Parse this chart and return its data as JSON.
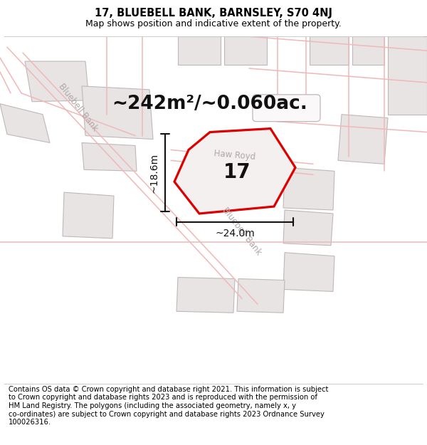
{
  "title_line1": "17, BLUEBELL BANK, BARNSLEY, S70 4NJ",
  "title_line2": "Map shows position and indicative extent of the property.",
  "footer_lines": [
    "Contains OS data © Crown copyright and database right 2021. This information is subject",
    "to Crown copyright and database rights 2023 and is reproduced with the permission of",
    "HM Land Registry. The polygons (including the associated geometry, namely x, y",
    "co-ordinates) are subject to Crown copyright and database rights 2023 Ordnance Survey",
    "100026316."
  ],
  "area_label": "~242m²/~0.060ac.",
  "number_label": "17",
  "dim_width": "~24.0m",
  "dim_height": "~18.6m",
  "road_label_bluebell_left": "Bluebell Bank",
  "road_label_haw": "Haw Royd",
  "road_label_bluebell_bottom": "Bluebell Bank",
  "map_bg": "#faf8f8",
  "road_line_color": "#f0b8b8",
  "building_fill": "#e8e4e4",
  "building_edge": "#c0b8b8",
  "road_label_color": "#b0a8a8",
  "plot_fill": "#f5f0f0",
  "plot_edge_color": "#dd0000",
  "dim_color": "#111111",
  "title_fontsize": 10.5,
  "subtitle_fontsize": 9,
  "footer_fontsize": 7.2,
  "area_fontsize": 19,
  "number_fontsize": 20,
  "dim_fontsize": 10
}
